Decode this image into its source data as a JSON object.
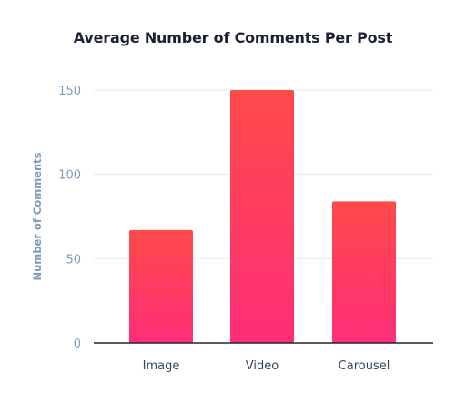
{
  "chart_data": {
    "type": "bar",
    "title": "Average Number of Comments Per Post",
    "xlabel": "",
    "ylabel": "Number of Comments",
    "categories": [
      "Image",
      "Video",
      "Carousel"
    ],
    "values": [
      67,
      150,
      84
    ],
    "ylim": [
      0,
      150
    ],
    "yticks": [
      0,
      50,
      100,
      150
    ],
    "grid": true,
    "legend": "none",
    "colors": {
      "bar_top": "#ff4a4a",
      "bar_bottom": "#ff2d78",
      "grid": "#e6ebf2",
      "baseline": "#1c2536",
      "tick_text": "#7f9bb8",
      "category_text": "#33475b",
      "title_text": "#1a2233"
    }
  }
}
